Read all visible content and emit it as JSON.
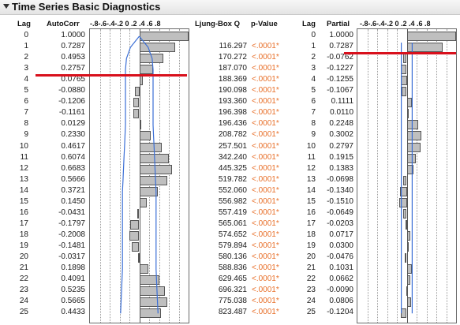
{
  "panel": {
    "title": "Time Series Basic Diagnostics"
  },
  "headers": {
    "lag": "Lag",
    "autocorr": "AutoCorr",
    "autocorr_scale": "-.8-.6-.4-.2 0 .2 .4 .6 .8",
    "ljung": "Ljung-Box Q",
    "pvalue": "p-Value",
    "lag2": "Lag",
    "partial": "Partial",
    "partial_scale": "-.8-.6-.4-.2 0 .2 .4 .6 .8"
  },
  "colors": {
    "bar_fill": "#bfbfbf",
    "pvalue_text": "#e8702a",
    "reference_line": "#d8101c",
    "confidence_curve": "#3b6fd6"
  },
  "chart_data": [
    {
      "type": "bar",
      "orientation": "horizontal",
      "xlim": [
        -1,
        1
      ],
      "categories": [
        "0",
        "1",
        "2",
        "3",
        "4",
        "5",
        "6",
        "7",
        "8",
        "9",
        "10",
        "11",
        "12",
        "13",
        "14",
        "15",
        "16",
        "17",
        "18",
        "19",
        "20",
        "21",
        "22",
        "23",
        "24",
        "25"
      ],
      "values": [
        1.0,
        0.7287,
        0.4953,
        0.2757,
        0.0765,
        -0.088,
        -0.1206,
        -0.1161,
        0.0129,
        0.233,
        0.4617,
        0.6074,
        0.6683,
        0.5666,
        0.3721,
        0.145,
        -0.0431,
        -0.1797,
        -0.2008,
        -0.1481,
        -0.0317,
        0.1898,
        0.4091,
        0.5235,
        0.5665,
        0.4433
      ],
      "value_labels": [
        "1.0000",
        "0.7287",
        "0.4953",
        "0.2757",
        "0.0765",
        "-0.0880",
        "-0.1206",
        "-0.1161",
        "0.0129",
        "0.2330",
        "0.4617",
        "0.6074",
        "0.6683",
        "0.5666",
        "0.3721",
        "0.1450",
        "-0.0431",
        "-0.1797",
        "-0.2008",
        "-0.1481",
        "-0.0317",
        "0.1898",
        "0.4091",
        "0.5235",
        "0.5665",
        "0.4433"
      ],
      "ljung_box_q": [
        "",
        "116.297",
        "170.272",
        "187.070",
        "188.369",
        "190.098",
        "193.360",
        "196.398",
        "196.436",
        "208.782",
        "257.501",
        "342.240",
        "445.325",
        "519.782",
        "552.060",
        "556.982",
        "557.419",
        "565.061",
        "574.652",
        "579.894",
        "580.136",
        "588.836",
        "629.465",
        "696.321",
        "775.038",
        "823.487"
      ],
      "p_values": [
        "",
        "<.0001*",
        "<.0001*",
        "<.0001*",
        "<.0001*",
        "<.0001*",
        "<.0001*",
        "<.0001*",
        "<.0001*",
        "<.0001*",
        "<.0001*",
        "<.0001*",
        "<.0001*",
        "<.0001*",
        "<.0001*",
        "<.0001*",
        "<.0001*",
        "<.0001*",
        "<.0001*",
        "<.0001*",
        "<.0001*",
        "<.0001*",
        "<.0001*",
        "<.0001*",
        "<.0001*",
        "<.0001*"
      ],
      "confidence_band": [
        0.0,
        0.18,
        0.26,
        0.28,
        0.28,
        0.28,
        0.28,
        0.28,
        0.28,
        0.29,
        0.3,
        0.31,
        0.32,
        0.33,
        0.34,
        0.34,
        0.34,
        0.34,
        0.34,
        0.34,
        0.34,
        0.34,
        0.35,
        0.36,
        0.37,
        0.38
      ],
      "reference_line_after_lag": 3
    },
    {
      "type": "bar",
      "orientation": "horizontal",
      "xlim": [
        -1,
        1
      ],
      "categories": [
        "0",
        "1",
        "2",
        "3",
        "4",
        "5",
        "6",
        "7",
        "8",
        "9",
        "10",
        "11",
        "12",
        "13",
        "14",
        "15",
        "16",
        "17",
        "18",
        "19",
        "20",
        "21",
        "22",
        "23",
        "24",
        "25"
      ],
      "values": [
        1.0,
        0.7287,
        -0.0762,
        -0.1227,
        -0.1255,
        -0.1067,
        0.1111,
        0.011,
        0.2248,
        0.3002,
        0.2797,
        0.1915,
        0.1383,
        -0.0698,
        -0.134,
        -0.151,
        -0.0649,
        -0.0203,
        0.0717,
        0.03,
        -0.0476,
        0.1031,
        0.0662,
        -0.009,
        0.0806,
        -0.1204
      ],
      "value_labels": [
        "1.0000",
        "0.7287",
        "-0.0762",
        "-0.1227",
        "-0.1255",
        "-0.1067",
        "0.1111",
        "0.0110",
        "0.2248",
        "0.3002",
        "0.2797",
        "0.1915",
        "0.1383",
        "-0.0698",
        "-0.1340",
        "-0.1510",
        "-0.0649",
        "-0.0203",
        "0.0717",
        "0.0300",
        "-0.0476",
        "0.1031",
        "0.0662",
        "-0.0090",
        "0.0806",
        "-0.1204"
      ],
      "confidence_band": 0.11,
      "reference_line_after_lag": 1
    }
  ]
}
